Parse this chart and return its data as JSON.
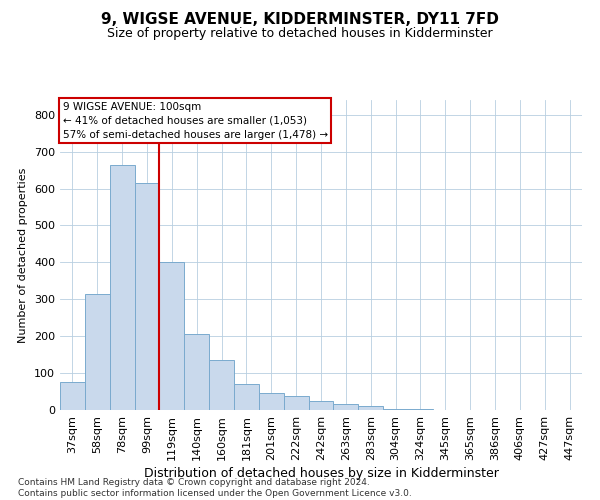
{
  "title": "9, WIGSE AVENUE, KIDDERMINSTER, DY11 7FD",
  "subtitle": "Size of property relative to detached houses in Kidderminster",
  "xlabel": "Distribution of detached houses by size in Kidderminster",
  "ylabel": "Number of detached properties",
  "categories": [
    "37sqm",
    "58sqm",
    "78sqm",
    "99sqm",
    "119sqm",
    "140sqm",
    "160sqm",
    "181sqm",
    "201sqm",
    "222sqm",
    "242sqm",
    "263sqm",
    "283sqm",
    "304sqm",
    "324sqm",
    "345sqm",
    "365sqm",
    "386sqm",
    "406sqm",
    "427sqm",
    "447sqm"
  ],
  "values": [
    75,
    315,
    665,
    615,
    400,
    205,
    135,
    70,
    47,
    38,
    25,
    15,
    10,
    4,
    4,
    1,
    1,
    0,
    0,
    1,
    0
  ],
  "bar_color": "#c9d9ec",
  "bar_edge_color": "#7aaace",
  "grid_color": "#b8cfe0",
  "vline_x_index": 3,
  "vline_color": "#cc0000",
  "annotation_lines": [
    "9 WIGSE AVENUE: 100sqm",
    "← 41% of detached houses are smaller (1,053)",
    "57% of semi-detached houses are larger (1,478) →"
  ],
  "annotation_box_color": "#ffffff",
  "annotation_box_edge": "#cc0000",
  "footer": "Contains HM Land Registry data © Crown copyright and database right 2024.\nContains public sector information licensed under the Open Government Licence v3.0.",
  "ylim": [
    0,
    840
  ],
  "yticks": [
    0,
    100,
    200,
    300,
    400,
    500,
    600,
    700,
    800
  ],
  "title_fontsize": 11,
  "subtitle_fontsize": 9,
  "xlabel_fontsize": 9,
  "ylabel_fontsize": 8,
  "tick_fontsize": 8,
  "annotation_fontsize": 7.5,
  "footer_fontsize": 6.5
}
